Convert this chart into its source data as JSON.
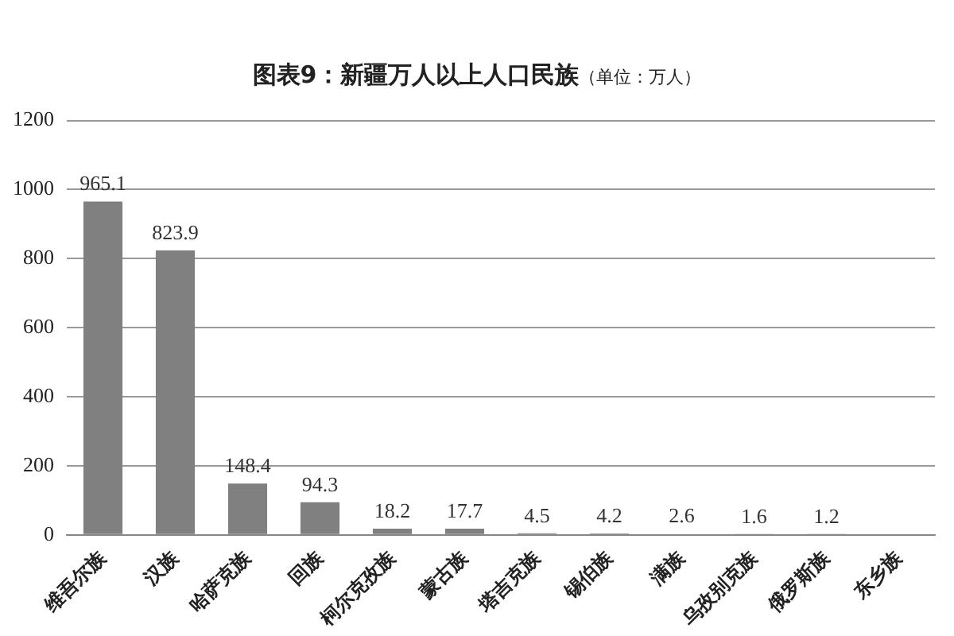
{
  "chart_data": {
    "type": "bar",
    "title": "图表9：新疆万人以上人口民族",
    "subtitle": "（单位：万人）",
    "categories": [
      "维吾尔族",
      "汉族",
      "哈萨克族",
      "回族",
      "柯尔克孜族",
      "蒙古族",
      "塔吉克族",
      "锡伯族",
      "满族",
      "乌孜别克族",
      "俄罗斯族",
      "东乡族"
    ],
    "values": [
      965.1,
      823.9,
      148.4,
      94.3,
      18.2,
      17.7,
      4.5,
      4.2,
      2.6,
      1.6,
      1.2,
      null
    ],
    "value_labels": [
      "965.1",
      "823.9",
      "148.4",
      "94.3",
      "18.2",
      "17.7",
      "4.5",
      "4.2",
      "2.6",
      "1.6",
      "1.2",
      null
    ],
    "color": "#808080",
    "ylim": [
      0,
      1200
    ],
    "yticks": [
      0,
      200,
      400,
      600,
      800,
      1000,
      1200
    ],
    "grid": "y"
  }
}
